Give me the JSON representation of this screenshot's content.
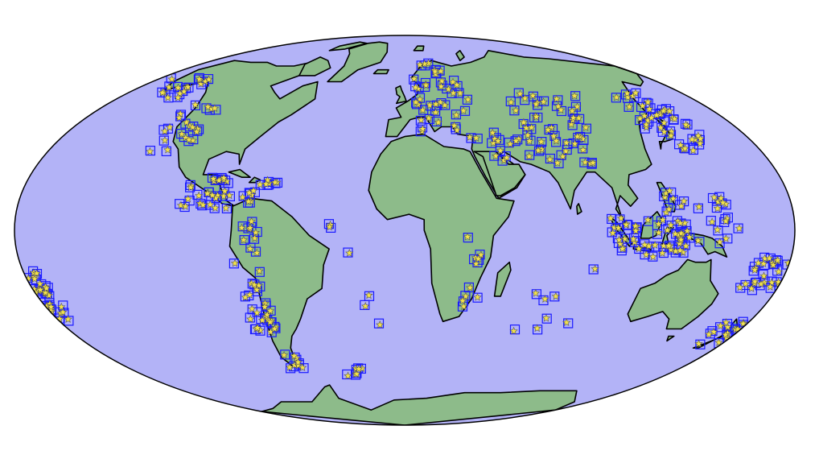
{
  "map": {
    "projection": "mollweide",
    "colors": {
      "ocean": "#b3b3f7",
      "land": "#8dbb8a",
      "coastline": "#000000",
      "outline": "#000000",
      "station_box": "#1a1aff",
      "event_star_fill": "#f2e24a",
      "event_star_stroke": "#555555"
    },
    "layers": [
      "ocean-background",
      "continents",
      "station-boxes",
      "event-stars"
    ],
    "marker_icons": {
      "station": "blue-square-icon",
      "event": "yellow-star-icon"
    },
    "point_clusters": [
      {
        "name": "alaska-aleutians",
        "lon_range": [
          -170,
          -140
        ],
        "lat_range": [
          52,
          62
        ],
        "count": 16
      },
      {
        "name": "western-north-america",
        "lon_range": [
          -130,
          -110
        ],
        "lat_range": [
          30,
          50
        ],
        "count": 20
      },
      {
        "name": "mexico-central-america",
        "lon_range": [
          -106,
          -82
        ],
        "lat_range": [
          8,
          20
        ],
        "count": 26
      },
      {
        "name": "caribbean",
        "lon_range": [
          -80,
          -60
        ],
        "lat_range": [
          10,
          20
        ],
        "count": 12
      },
      {
        "name": "andes",
        "lon_range": [
          -80,
          -68
        ],
        "lat_range": [
          -40,
          5
        ],
        "count": 36
      },
      {
        "name": "tierra-del-fuego",
        "lon_range": [
          -75,
          -65
        ],
        "lat_range": [
          -56,
          -48
        ],
        "count": 8
      },
      {
        "name": "scotia-arc",
        "lon_range": [
          -40,
          -26
        ],
        "lat_range": [
          -60,
          -54
        ],
        "count": 6
      },
      {
        "name": "tonga-kermadec",
        "lon_range": [
          -180,
          -172
        ],
        "lat_range": [
          -35,
          -15
        ],
        "count": 30
      },
      {
        "name": "mid-atlantic",
        "lon_range": [
          -35,
          -12
        ],
        "lat_range": [
          -40,
          10
        ],
        "count": 6
      },
      {
        "name": "europe-mediterranean",
        "lon_range": [
          5,
          40
        ],
        "lat_range": [
          35,
          70
        ],
        "count": 40
      },
      {
        "name": "east-africa",
        "lon_range": [
          28,
          36
        ],
        "lat_range": [
          -30,
          0
        ],
        "count": 10
      },
      {
        "name": "iran-himalaya",
        "lon_range": [
          45,
          95
        ],
        "lat_range": [
          25,
          40
        ],
        "count": 34
      },
      {
        "name": "central-asia",
        "lon_range": [
          65,
          110
        ],
        "lat_range": [
          38,
          55
        ],
        "count": 24
      },
      {
        "name": "japan-kuril",
        "lon_range": [
          130,
          155
        ],
        "lat_range": [
          30,
          55
        ],
        "count": 40
      },
      {
        "name": "indonesia",
        "lon_range": [
          95,
          130
        ],
        "lat_range": [
          -10,
          5
        ],
        "count": 40
      },
      {
        "name": "philippines-png",
        "lon_range": [
          120,
          155
        ],
        "lat_range": [
          -8,
          18
        ],
        "count": 36
      },
      {
        "name": "vanuatu-fiji",
        "lon_range": [
          160,
          180
        ],
        "lat_range": [
          -25,
          -10
        ],
        "count": 24
      },
      {
        "name": "new-zealand",
        "lon_range": [
          165,
          180
        ],
        "lat_range": [
          -45,
          -35
        ],
        "count": 14
      },
      {
        "name": "indian-ocean",
        "lon_range": [
          55,
          90
        ],
        "lat_range": [
          -40,
          -10
        ],
        "count": 8
      }
    ]
  }
}
